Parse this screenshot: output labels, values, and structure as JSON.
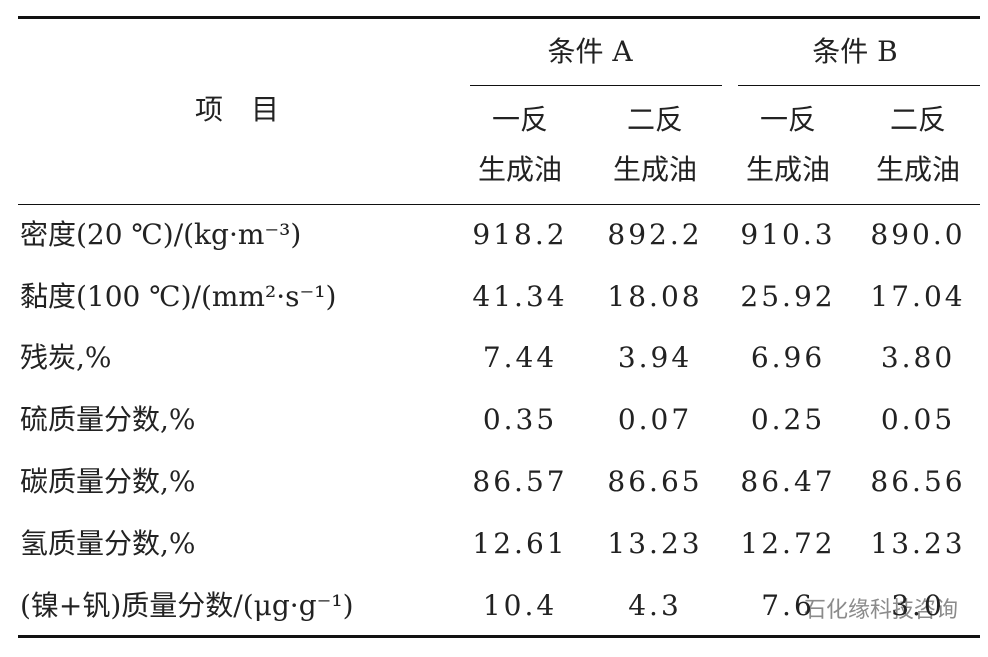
{
  "table": {
    "item_header": "项　目",
    "groups": [
      {
        "label": "条件 A",
        "subheaders": [
          [
            "一反",
            "生成油"
          ],
          [
            "二反",
            "生成油"
          ]
        ]
      },
      {
        "label": "条件 B",
        "subheaders": [
          [
            "一反",
            "生成油"
          ],
          [
            "二反",
            "生成油"
          ]
        ]
      }
    ],
    "rows": [
      [
        "密度(20 ℃)/(kg·m⁻³)",
        "918.2",
        "892.2",
        "910.3",
        "890.0"
      ],
      [
        "黏度(100 ℃)/(mm²·s⁻¹)",
        "41.34",
        "18.08",
        "25.92",
        "17.04"
      ],
      [
        "残炭,%",
        "7.44",
        "3.94",
        "6.96",
        "3.80"
      ],
      [
        "硫质量分数,%",
        "0.35",
        "0.07",
        "0.25",
        "0.05"
      ],
      [
        "碳质量分数,%",
        "86.57",
        "86.65",
        "86.47",
        "86.56"
      ],
      [
        "氢质量分数,%",
        "12.61",
        "13.23",
        "12.72",
        "13.23"
      ],
      [
        "(镍+钒)质量分数/(μg·g⁻¹)",
        "10.4",
        "4.3",
        "7.6",
        "3.0"
      ]
    ]
  },
  "watermark": "石化缘科技咨询"
}
